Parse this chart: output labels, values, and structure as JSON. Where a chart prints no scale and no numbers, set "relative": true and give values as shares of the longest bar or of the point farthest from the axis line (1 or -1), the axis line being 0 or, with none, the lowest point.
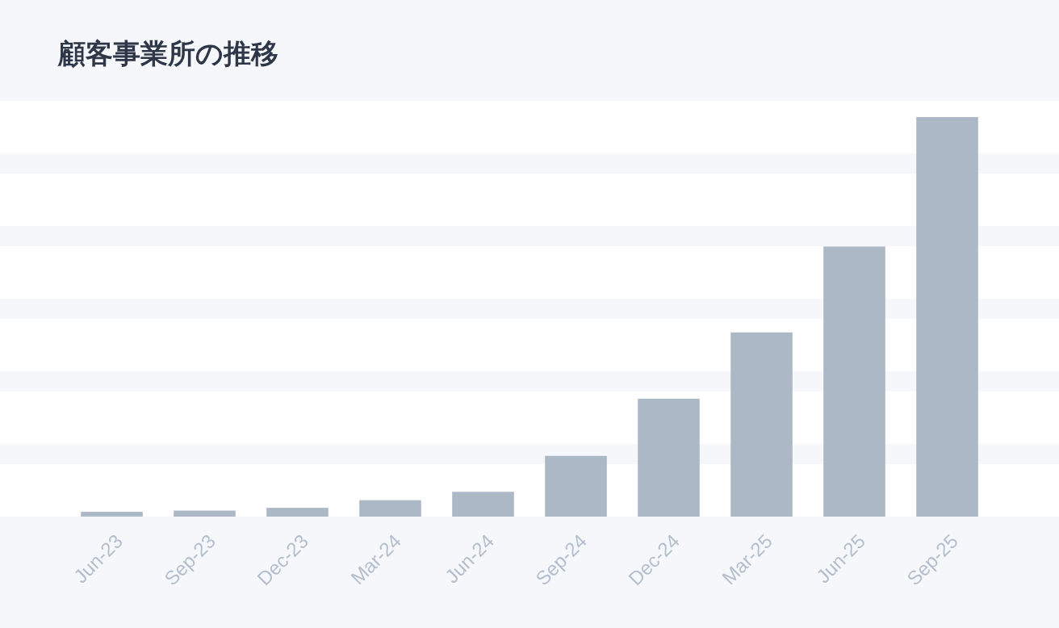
{
  "chart_data": {
    "type": "bar",
    "title": "顧客事業所の推移",
    "categories": [
      "Jun-23",
      "Sep-23",
      "Dec-23",
      "Mar-24",
      "Jun-24",
      "Sep-24",
      "Dec-24",
      "Mar-25",
      "Jun-25",
      "Sep-25"
    ],
    "values": [
      0.012,
      0.015,
      0.022,
      0.041,
      0.062,
      0.152,
      0.295,
      0.461,
      0.676,
      1
    ],
    "color": "#adb8c7",
    "relative": true,
    "grid": "y"
  }
}
